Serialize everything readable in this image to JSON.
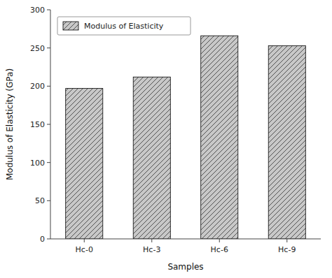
{
  "chart_data": {
    "type": "bar",
    "categories": [
      "Hc-0",
      "Hc-3",
      "Hc-6",
      "Hc-9"
    ],
    "series": [
      {
        "name": "Modulus of Elasticity",
        "color": "#c8c8c8",
        "values": [
          197,
          212,
          266,
          253
        ]
      }
    ],
    "xlabel": "Samples",
    "ylabel": "Modulus of Elasticity (GPa)",
    "ylim": [
      0,
      300
    ],
    "yticks": [
      0,
      50,
      100,
      150,
      200,
      250,
      300
    ],
    "grid": false,
    "legend": "upper left"
  }
}
